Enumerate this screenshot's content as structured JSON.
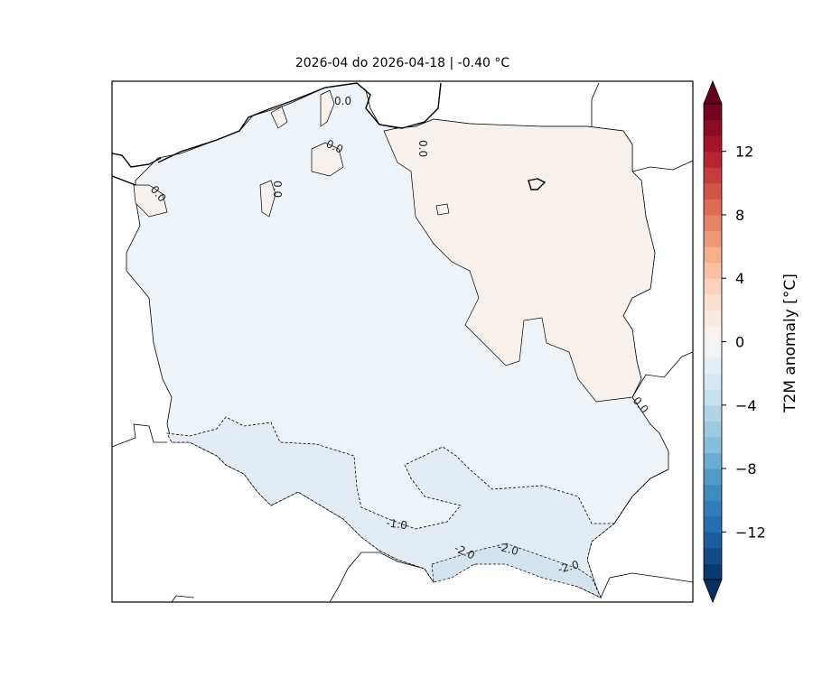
{
  "title": "2026-04 do 2026-04-18 | -0.40 °C",
  "map": {
    "region_mean_anomaly": -0.4,
    "fill_colors": {
      "near_zero_negative": "#eef3f7",
      "near_zero_positive": "#f6f1ed",
      "below_minus_1": "#e3ecf4",
      "below_minus_2": "#d3e4ef"
    },
    "contour_labels": [
      "0.0",
      "0.0",
      "0.0",
      "0.0",
      "0.0",
      "0.0",
      "-1.0",
      "-2.0",
      "-2.0",
      "-2.0"
    ]
  },
  "colorbar": {
    "label": "T2M anomaly [°C]",
    "range": [
      -15,
      15
    ],
    "extend": "both",
    "colormap": "RdBu_r",
    "ticks": [
      "−12",
      "−8",
      "−4",
      "0",
      "4",
      "8",
      "12"
    ],
    "tick_values": [
      -12,
      -8,
      -4,
      0,
      4,
      8,
      12
    ]
  }
}
